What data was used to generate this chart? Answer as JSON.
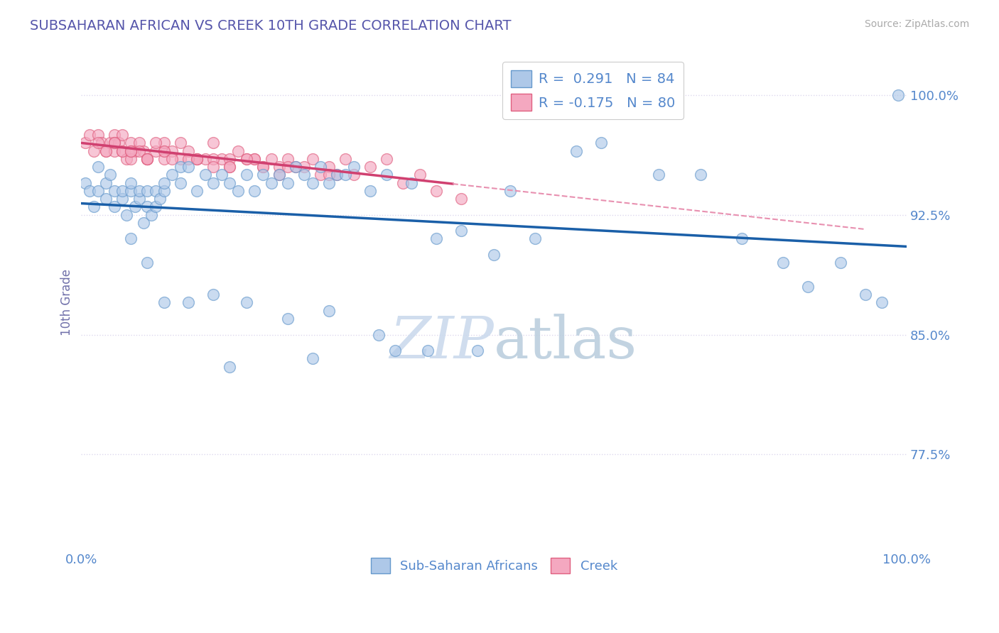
{
  "title": "SUBSAHARAN AFRICAN VS CREEK 10TH GRADE CORRELATION CHART",
  "source_text": "Source: ZipAtlas.com",
  "ylabel": "10th Grade",
  "xlim": [
    0.0,
    1.0
  ],
  "ylim": [
    0.715,
    1.025
  ],
  "yticks": [
    0.775,
    0.85,
    0.925,
    1.0
  ],
  "ytick_labels": [
    "77.5%",
    "85.0%",
    "92.5%",
    "100.0%"
  ],
  "xticks": [
    0.0,
    1.0
  ],
  "xtick_labels": [
    "0.0%",
    "100.0%"
  ],
  "r_blue": 0.291,
  "n_blue": 84,
  "r_pink": -0.175,
  "n_pink": 80,
  "blue_scatter_color": "#aec8e8",
  "blue_edge_color": "#6699cc",
  "pink_scatter_color": "#f4a8c0",
  "pink_edge_color": "#e06080",
  "trend_blue_color": "#1a5fa8",
  "trend_pink_solid_color": "#d04070",
  "trend_pink_dashed_color": "#e890b0",
  "grid_color": "#ddd8ee",
  "title_color": "#5555aa",
  "axis_label_color": "#7070aa",
  "tick_color": "#5588cc",
  "watermark_color": "#d8e8f8",
  "background_color": "#ffffff",
  "blue_x": [
    0.005,
    0.01,
    0.015,
    0.02,
    0.02,
    0.03,
    0.03,
    0.035,
    0.04,
    0.04,
    0.05,
    0.05,
    0.055,
    0.06,
    0.06,
    0.065,
    0.07,
    0.07,
    0.075,
    0.08,
    0.08,
    0.085,
    0.09,
    0.09,
    0.095,
    0.1,
    0.1,
    0.11,
    0.12,
    0.12,
    0.13,
    0.14,
    0.15,
    0.16,
    0.17,
    0.18,
    0.19,
    0.2,
    0.21,
    0.22,
    0.23,
    0.24,
    0.25,
    0.26,
    0.27,
    0.28,
    0.29,
    0.3,
    0.31,
    0.32,
    0.33,
    0.35,
    0.37,
    0.4,
    0.43,
    0.46,
    0.5,
    0.52,
    0.55,
    0.6,
    0.63,
    0.7,
    0.75,
    0.8,
    0.85,
    0.88,
    0.92,
    0.95,
    0.97,
    0.99,
    0.06,
    0.08,
    0.1,
    0.13,
    0.16,
    0.2,
    0.25,
    0.3,
    0.36,
    0.42,
    0.48,
    0.38,
    0.28,
    0.18
  ],
  "blue_y": [
    0.945,
    0.94,
    0.93,
    0.955,
    0.94,
    0.945,
    0.935,
    0.95,
    0.94,
    0.93,
    0.935,
    0.94,
    0.925,
    0.94,
    0.945,
    0.93,
    0.935,
    0.94,
    0.92,
    0.93,
    0.94,
    0.925,
    0.93,
    0.94,
    0.935,
    0.94,
    0.945,
    0.95,
    0.945,
    0.955,
    0.955,
    0.94,
    0.95,
    0.945,
    0.95,
    0.945,
    0.94,
    0.95,
    0.94,
    0.95,
    0.945,
    0.95,
    0.945,
    0.955,
    0.95,
    0.945,
    0.955,
    0.945,
    0.95,
    0.95,
    0.955,
    0.94,
    0.95,
    0.945,
    0.91,
    0.915,
    0.9,
    0.94,
    0.91,
    0.965,
    0.97,
    0.95,
    0.95,
    0.91,
    0.895,
    0.88,
    0.895,
    0.875,
    0.87,
    1.0,
    0.91,
    0.895,
    0.87,
    0.87,
    0.875,
    0.87,
    0.86,
    0.865,
    0.85,
    0.84,
    0.84,
    0.84,
    0.835,
    0.83
  ],
  "pink_x": [
    0.005,
    0.01,
    0.015,
    0.02,
    0.025,
    0.03,
    0.035,
    0.04,
    0.04,
    0.045,
    0.05,
    0.05,
    0.055,
    0.06,
    0.065,
    0.07,
    0.075,
    0.08,
    0.09,
    0.1,
    0.1,
    0.11,
    0.12,
    0.13,
    0.14,
    0.15,
    0.16,
    0.17,
    0.18,
    0.19,
    0.2,
    0.21,
    0.22,
    0.23,
    0.24,
    0.25,
    0.26,
    0.27,
    0.28,
    0.29,
    0.3,
    0.31,
    0.32,
    0.33,
    0.35,
    0.37,
    0.39,
    0.41,
    0.43,
    0.46,
    0.02,
    0.03,
    0.04,
    0.05,
    0.06,
    0.07,
    0.08,
    0.09,
    0.1,
    0.12,
    0.14,
    0.16,
    0.18,
    0.21,
    0.24,
    0.04,
    0.06,
    0.08,
    0.1,
    0.13,
    0.16,
    0.2,
    0.25,
    0.3,
    0.06,
    0.08,
    0.11,
    0.14,
    0.18,
    0.22
  ],
  "pink_y": [
    0.97,
    0.975,
    0.965,
    0.975,
    0.97,
    0.965,
    0.97,
    0.965,
    0.975,
    0.97,
    0.965,
    0.975,
    0.96,
    0.97,
    0.965,
    0.97,
    0.965,
    0.96,
    0.965,
    0.965,
    0.97,
    0.965,
    0.97,
    0.965,
    0.96,
    0.96,
    0.97,
    0.96,
    0.96,
    0.965,
    0.96,
    0.96,
    0.955,
    0.96,
    0.955,
    0.96,
    0.955,
    0.955,
    0.96,
    0.95,
    0.955,
    0.95,
    0.96,
    0.95,
    0.955,
    0.96,
    0.945,
    0.95,
    0.94,
    0.935,
    0.97,
    0.965,
    0.97,
    0.965,
    0.96,
    0.965,
    0.96,
    0.97,
    0.96,
    0.96,
    0.96,
    0.96,
    0.955,
    0.96,
    0.95,
    0.97,
    0.965,
    0.96,
    0.965,
    0.96,
    0.955,
    0.96,
    0.955,
    0.95,
    0.965,
    0.96,
    0.96,
    0.96,
    0.955,
    0.955
  ]
}
